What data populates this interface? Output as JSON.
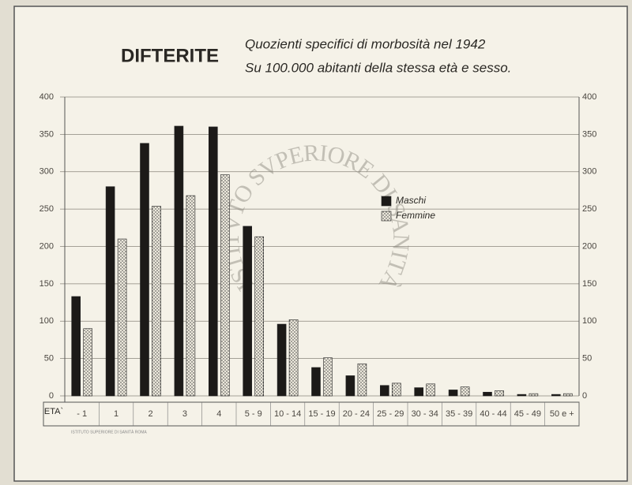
{
  "chart_data": {
    "type": "bar",
    "title": "DIFTERITE",
    "subtitle": [
      "Quozienti specifici di morbosità nel 1942",
      "Su 100.000 abitanti della stessa età e sesso."
    ],
    "x_label": "ETA`",
    "watermark": "ISTITVTO SVPERIORE DI SANITÀ",
    "footer": "ISTITUTO SUPERIORE DI SANITÀ ROMA",
    "categories": [
      "- 1",
      "1",
      "2",
      "3",
      "4",
      "5 - 9",
      "10 - 14",
      "15 - 19",
      "20 - 24",
      "25 - 29",
      "30 - 34",
      "35 - 39",
      "40 - 44",
      "45 - 49",
      "50 e +"
    ],
    "series": [
      {
        "name": "Maschi",
        "color": "#1c1a18",
        "values": [
          133,
          280,
          338,
          361,
          360,
          227,
          96,
          38,
          27,
          14,
          11,
          8,
          5,
          2,
          2
        ]
      },
      {
        "name": "Femmine",
        "color": "#ece8dc",
        "values": [
          90,
          210,
          254,
          268,
          296,
          213,
          102,
          51,
          43,
          17,
          16,
          12,
          7,
          3,
          3
        ]
      }
    ],
    "ylim": [
      0,
      400
    ],
    "yticks": [
      0,
      50,
      100,
      150,
      200,
      250,
      300,
      350,
      400
    ],
    "grid": true
  }
}
